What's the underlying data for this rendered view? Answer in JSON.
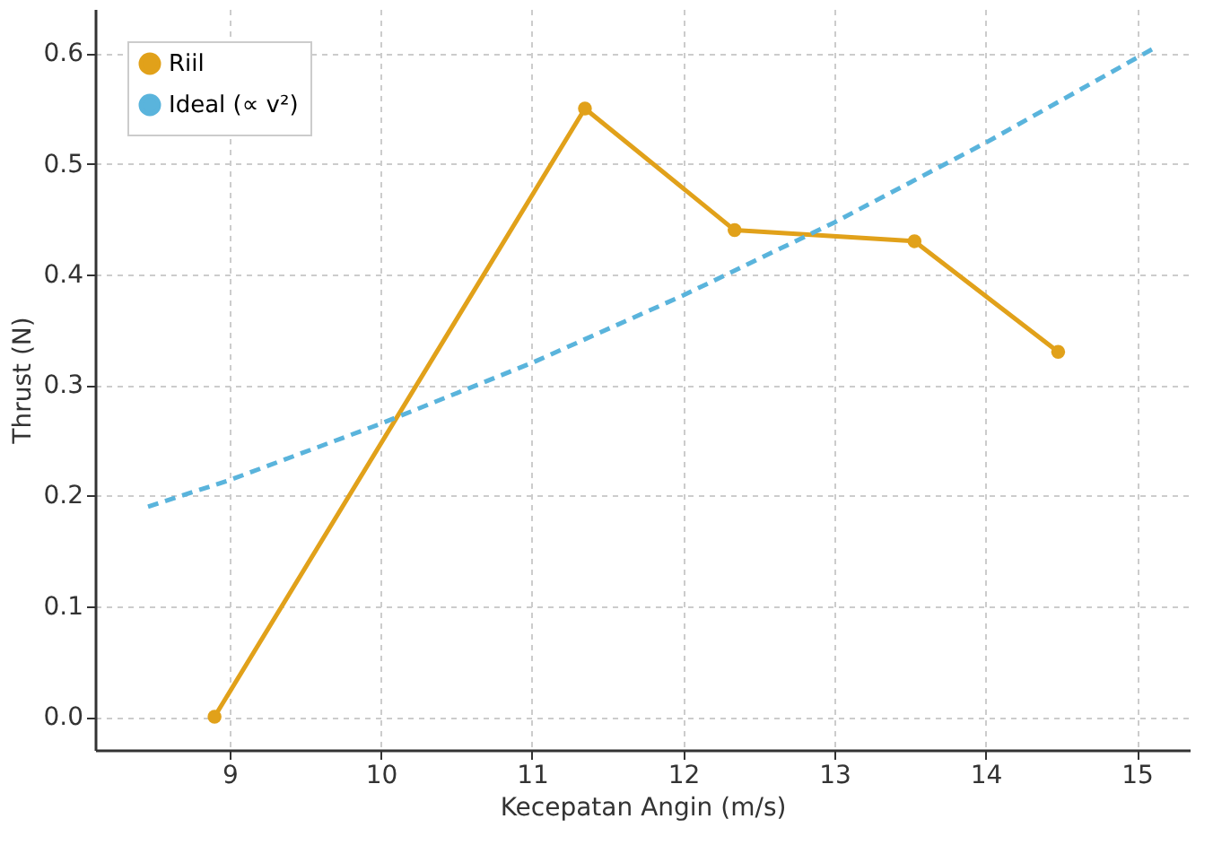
{
  "chart_data": {
    "type": "line",
    "xlabel": "Kecepatan Angin (m/s)",
    "ylabel": "Thrust (N)",
    "series": [
      {
        "name": "Riil",
        "color": "#e1a11a",
        "x": [
          8.9,
          11.35,
          12.34,
          13.53,
          14.48
        ],
        "values": [
          0.0,
          0.55,
          0.44,
          0.43,
          0.33
        ],
        "marker": "circle",
        "line_style": "solid"
      },
      {
        "name": "Ideal (∝ v²)",
        "color": "#5ab4dc",
        "x": [
          8.46,
          9,
          10,
          11,
          12,
          13,
          14,
          15.12
        ],
        "values": [
          0.19,
          0.214,
          0.265,
          0.32,
          0.381,
          0.447,
          0.519,
          0.605
        ],
        "marker": "none",
        "line_style": "dashed"
      }
    ],
    "xlim": [
      8.11,
      15.35
    ],
    "xticks": [
      9,
      10,
      11,
      12,
      13,
      14,
      15
    ],
    "ylim": [
      -0.03,
      0.64
    ],
    "yticks": [
      {
        "value": 0,
        "label": "0.0"
      },
      0.1,
      0.2,
      0.3,
      0.4,
      0.5,
      0.6
    ],
    "grid": true,
    "legend": "top left"
  }
}
